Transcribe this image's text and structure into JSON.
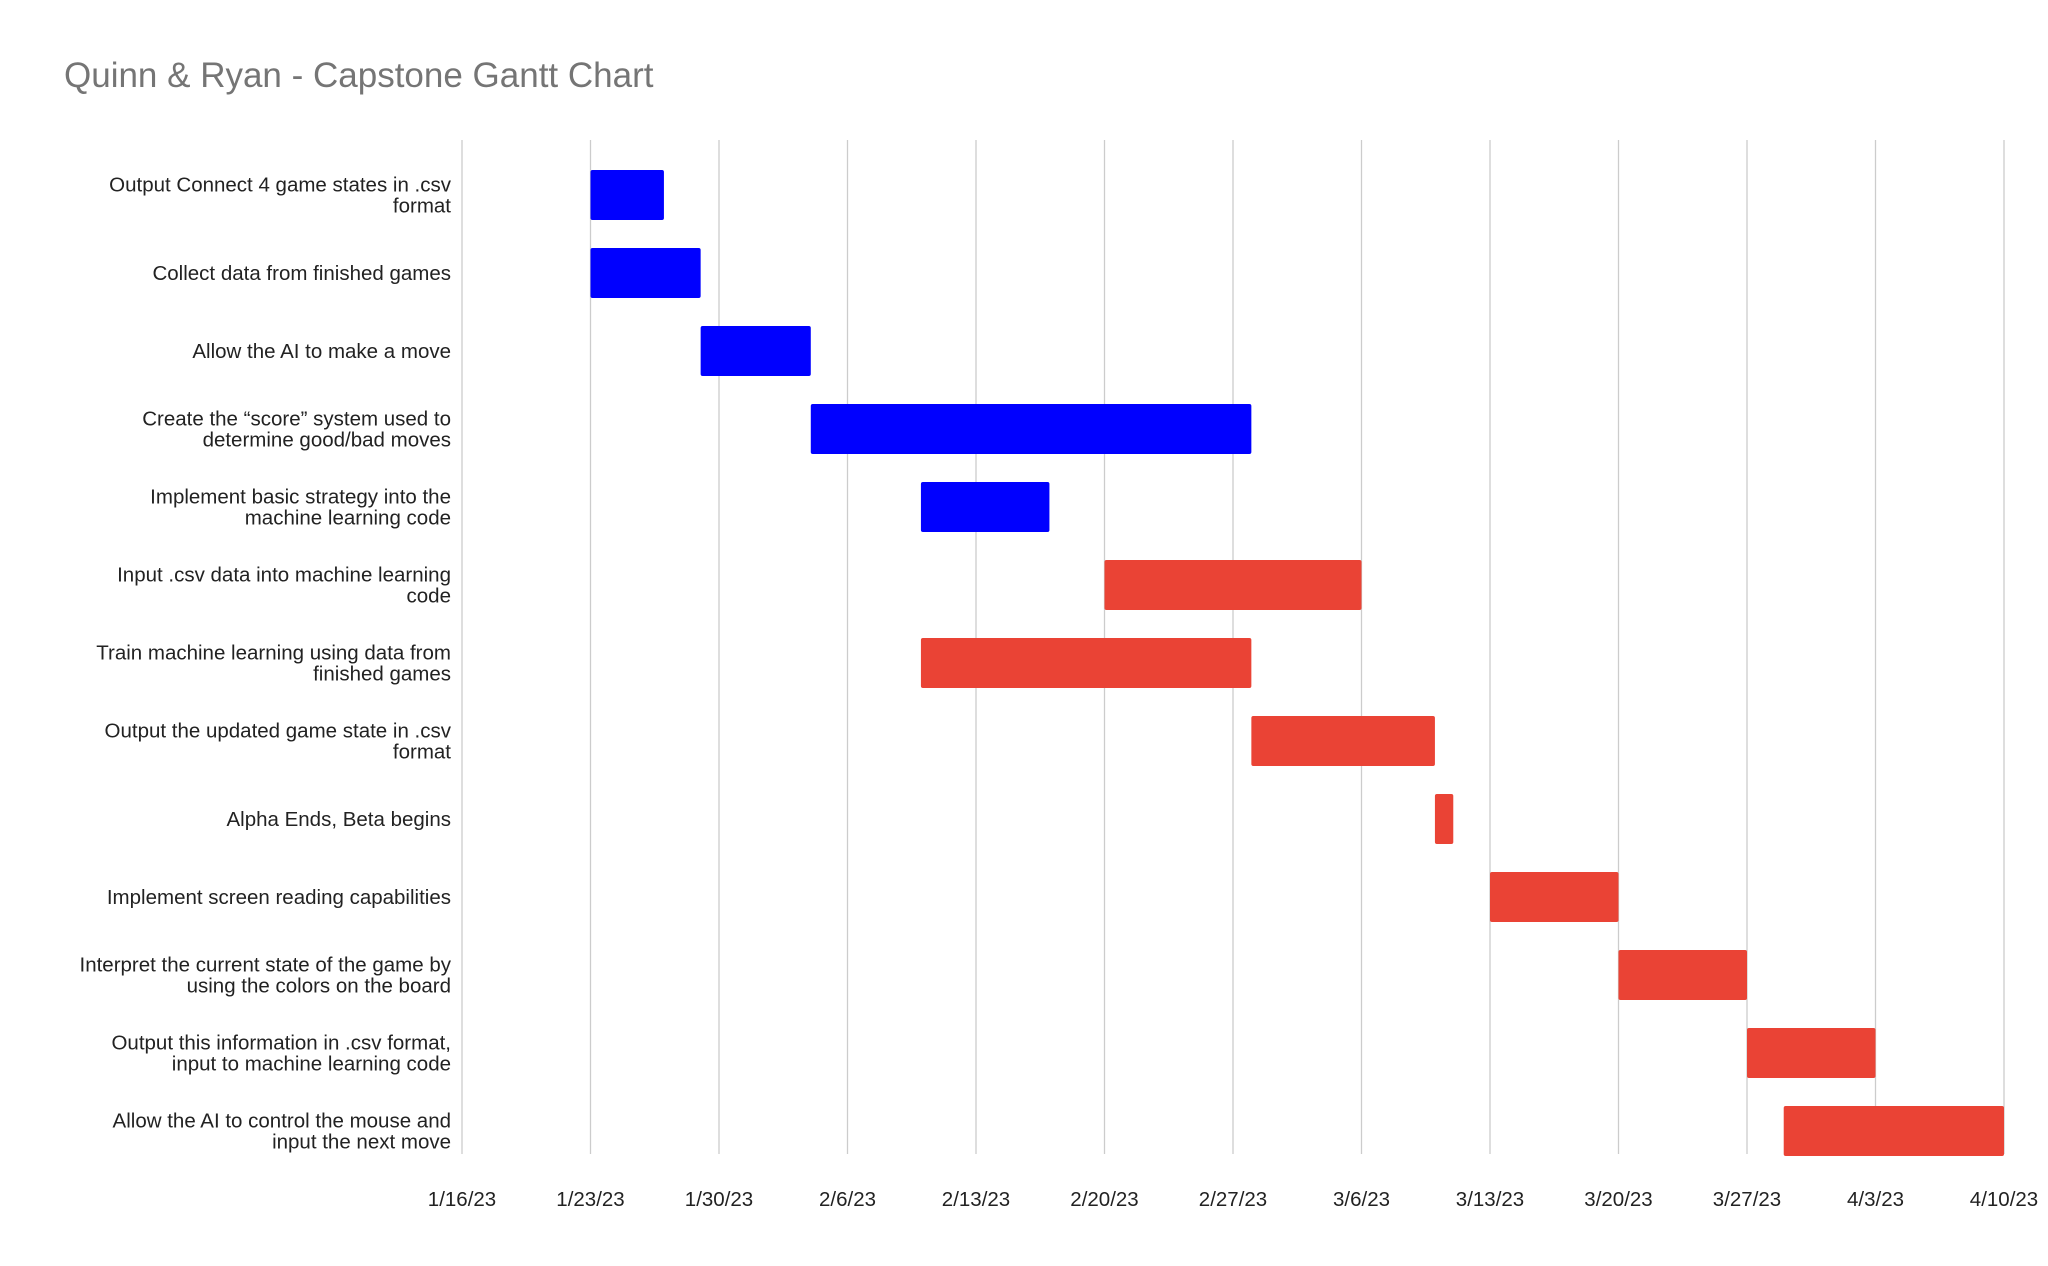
{
  "chart_data": {
    "type": "gantt",
    "title": "Quinn & Ryan - Capstone Gantt Chart",
    "xlabel": "",
    "ylabel": "",
    "x_ticks": [
      "1/16/23",
      "1/23/23",
      "1/30/23",
      "2/6/23",
      "2/13/23",
      "2/20/23",
      "2/27/23",
      "3/6/23",
      "3/13/23",
      "3/20/23",
      "3/27/23",
      "4/3/23",
      "4/10/23"
    ],
    "xlim": [
      "2023-01-16",
      "2023-04-10"
    ],
    "grid": true,
    "colors": {
      "blue": "#0000ff",
      "red": "#ea4335",
      "grid": "#cccccc",
      "title": "#757575",
      "text": "#222222"
    },
    "tasks": [
      {
        "label": [
          "Output Connect 4 game states in .csv",
          "format"
        ],
        "start": "2023-01-23",
        "end": "2023-01-27",
        "color": "blue"
      },
      {
        "label": [
          "Collect data from finished games"
        ],
        "start": "2023-01-23",
        "end": "2023-01-29",
        "color": "blue"
      },
      {
        "label": [
          "Allow the AI to make a move"
        ],
        "start": "2023-01-29",
        "end": "2023-02-04",
        "color": "blue"
      },
      {
        "label": [
          "Create the “score” system used to",
          "determine good/bad moves"
        ],
        "start": "2023-02-04",
        "end": "2023-02-28",
        "color": "blue"
      },
      {
        "label": [
          "Implement basic strategy into the",
          "machine learning code"
        ],
        "start": "2023-02-10",
        "end": "2023-02-17",
        "color": "blue"
      },
      {
        "label": [
          "Input .csv data into machine learning",
          "code"
        ],
        "start": "2023-02-20",
        "end": "2023-03-06",
        "color": "red"
      },
      {
        "label": [
          "Train machine learning using data from",
          "finished games"
        ],
        "start": "2023-02-10",
        "end": "2023-02-28",
        "color": "red"
      },
      {
        "label": [
          "Output the updated game state in .csv",
          "format"
        ],
        "start": "2023-02-28",
        "end": "2023-03-10",
        "color": "red"
      },
      {
        "label": [
          "Alpha Ends, Beta begins"
        ],
        "start": "2023-03-10",
        "end": "2023-03-11",
        "color": "red"
      },
      {
        "label": [
          "Implement screen reading capabilities"
        ],
        "start": "2023-03-13",
        "end": "2023-03-20",
        "color": "red"
      },
      {
        "label": [
          "Interpret the current state of the game by",
          "using the colors on the board"
        ],
        "start": "2023-03-20",
        "end": "2023-03-27",
        "color": "red"
      },
      {
        "label": [
          "Output this information in .csv format,",
          "input to machine learning code"
        ],
        "start": "2023-03-27",
        "end": "2023-04-03",
        "color": "red"
      },
      {
        "label": [
          "Allow the AI to control the mouse and",
          "input the next move"
        ],
        "start": "2023-03-29",
        "end": "2023-04-10",
        "color": "red"
      }
    ]
  }
}
